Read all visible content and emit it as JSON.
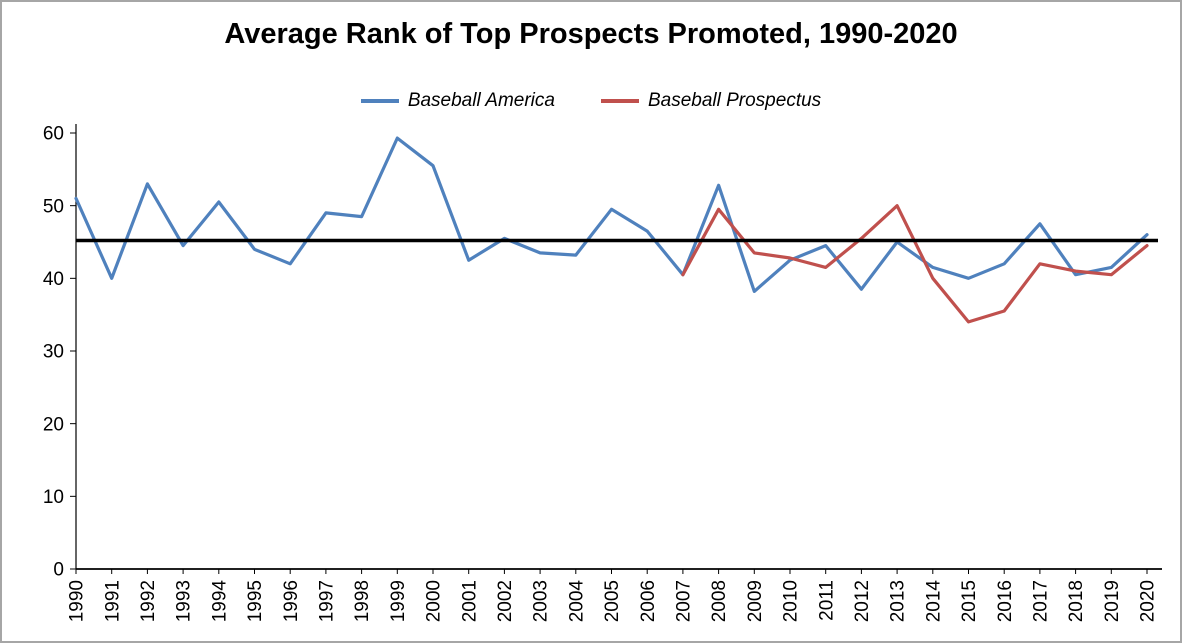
{
  "chart_data": {
    "type": "line",
    "title": "Average Rank of Top Prospects Promoted, 1990-2020",
    "years": [
      1990,
      1991,
      1992,
      1993,
      1994,
      1995,
      1996,
      1997,
      1998,
      1999,
      2000,
      2001,
      2002,
      2003,
      2004,
      2005,
      2006,
      2007,
      2008,
      2009,
      2010,
      2011,
      2012,
      2013,
      2014,
      2015,
      2016,
      2017,
      2018,
      2019,
      2020
    ],
    "series": [
      {
        "name": "Baseball America",
        "color": "#4F81BD",
        "values": [
          51,
          40,
          53,
          44.5,
          50.5,
          44,
          42,
          49,
          48.5,
          59.3,
          55.5,
          42.5,
          45.5,
          43.5,
          43.2,
          49.5,
          46.5,
          40.5,
          52.8,
          38.2,
          42.5,
          44.5,
          38.5,
          45,
          41.5,
          40,
          42,
          47.5,
          40.5,
          41.5,
          46
        ]
      },
      {
        "name": "Baseball Prospectus",
        "color": "#C0504D",
        "values": [
          null,
          null,
          null,
          null,
          null,
          null,
          null,
          null,
          null,
          null,
          null,
          null,
          null,
          null,
          null,
          null,
          null,
          40.5,
          49.5,
          43.5,
          42.8,
          41.5,
          45.5,
          50,
          40,
          34,
          35.5,
          42,
          41,
          40.5,
          44.5
        ]
      }
    ],
    "average_line": {
      "value": 45.2,
      "color": "#000000"
    },
    "ylim": [
      0,
      60
    ],
    "yticks": [
      0,
      10,
      20,
      30,
      40,
      50,
      60
    ],
    "legend_position": "top",
    "grid": "off"
  }
}
